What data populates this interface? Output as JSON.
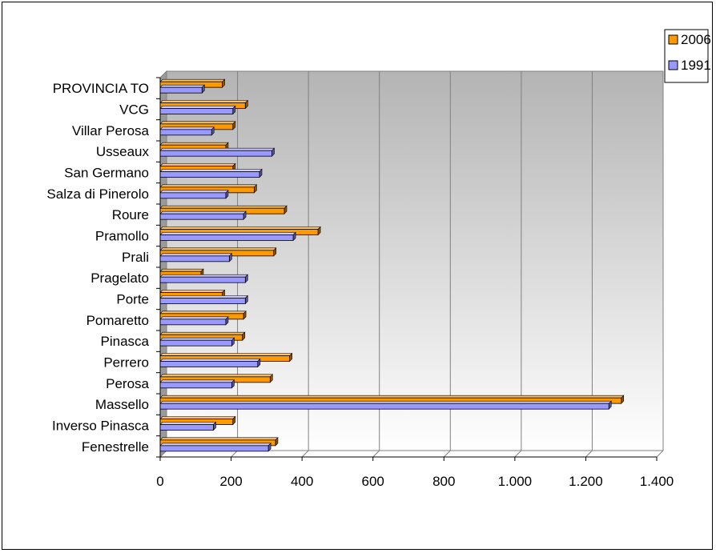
{
  "chart_data": {
    "type": "bar",
    "orientation": "horizontal",
    "categories": [
      "PROVINCIA TO",
      "VCG",
      "Villar Perosa",
      "Usseaux",
      "San Germano",
      "Salza di Pinerolo",
      "Roure",
      "Pramollo",
      "Prali",
      "Pragelato",
      "Porte",
      "Pomaretto",
      "Pinasca",
      "Perrero",
      "Perosa",
      "Massello",
      "Inverso Pinasca",
      "Fenestrelle"
    ],
    "series": [
      {
        "name": "2006",
        "color": "#FF9900",
        "values": [
          175,
          240,
          205,
          185,
          205,
          265,
          350,
          445,
          320,
          115,
          175,
          235,
          232,
          365,
          310,
          1300,
          205,
          325
        ]
      },
      {
        "name": "1991",
        "color": "#9999FF",
        "values": [
          118,
          205,
          145,
          315,
          280,
          185,
          235,
          375,
          195,
          240,
          240,
          185,
          202,
          275,
          202,
          1265,
          150,
          305
        ]
      }
    ],
    "xlim": [
      0,
      1400
    ],
    "xticks": [
      "0",
      "200",
      "400",
      "600",
      "800",
      "1.000",
      "1.200",
      "1.400"
    ],
    "xtick_values": [
      0,
      200,
      400,
      600,
      800,
      1000,
      1200,
      1400
    ],
    "grid": true,
    "legend_position": "top-right",
    "title": "",
    "xlabel": "",
    "ylabel": ""
  }
}
